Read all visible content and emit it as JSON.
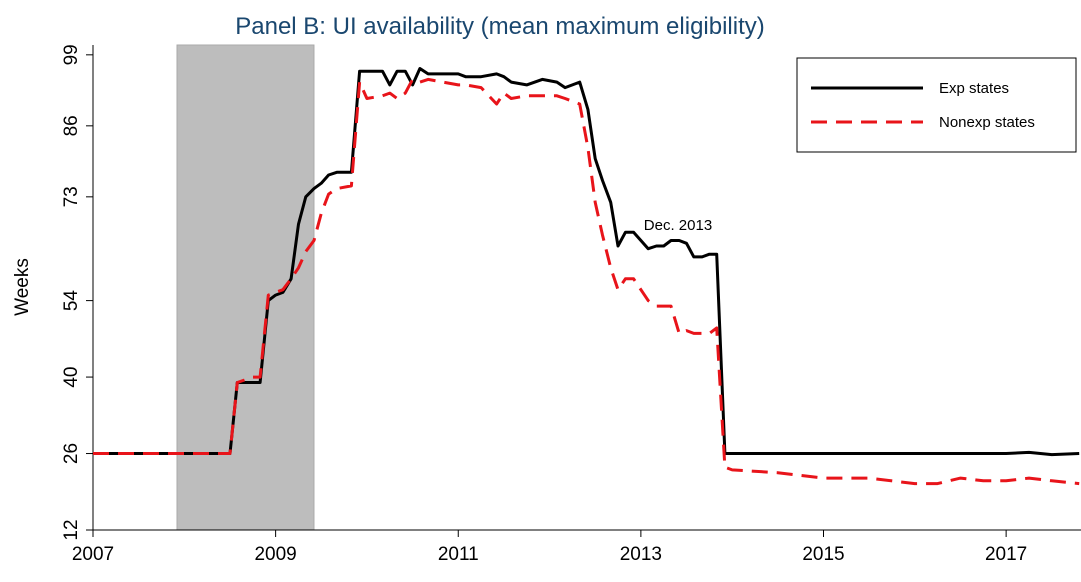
{
  "chart_data": {
    "type": "line",
    "title": "Panel B: UI availability (mean maximum eligibility)",
    "ylabel": "Weeks",
    "annotation": "Dec. 2013",
    "shaded_x": [
      2007.92,
      2009.42
    ],
    "x": [
      2007,
      2008.5,
      2008.58,
      2008.75,
      2008.83,
      2008.92,
      2009.0,
      2009.08,
      2009.17,
      2009.25,
      2009.33,
      2009.42,
      2009.5,
      2009.58,
      2009.67,
      2009.83,
      2009.92,
      2010.0,
      2010.17,
      2010.25,
      2010.33,
      2010.42,
      2010.5,
      2010.58,
      2010.67,
      2010.83,
      2011.0,
      2011.08,
      2011.25,
      2011.42,
      2011.5,
      2011.58,
      2011.75,
      2011.92,
      2012.08,
      2012.17,
      2012.33,
      2012.42,
      2012.5,
      2012.58,
      2012.67,
      2012.75,
      2012.83,
      2012.92,
      2013.0,
      2013.08,
      2013.17,
      2013.25,
      2013.33,
      2013.42,
      2013.5,
      2013.58,
      2013.67,
      2013.75,
      2013.83,
      2013.92,
      2014.0,
      2014.5,
      2015.0,
      2015.5,
      2016.0,
      2016.25,
      2016.5,
      2016.75,
      2017.0,
      2017.25,
      2017.5,
      2017.8
    ],
    "series": [
      {
        "name": "Exp states",
        "color": "#000000",
        "dash": false,
        "values": [
          26,
          26,
          39,
          39,
          39,
          54,
          55,
          55.5,
          58,
          68,
          73,
          74.5,
          75.5,
          77,
          77.5,
          77.5,
          96,
          96,
          96,
          93.5,
          96,
          96,
          93.5,
          96.5,
          95.5,
          95.5,
          95.5,
          95,
          95,
          95.5,
          95,
          94,
          93.5,
          94.5,
          94,
          93,
          94,
          89,
          80,
          76,
          72,
          64,
          66.5,
          66.5,
          65,
          63.5,
          64,
          64,
          65,
          65,
          64.5,
          62,
          62,
          62.5,
          62.5,
          26,
          26,
          26,
          26,
          26,
          26,
          26,
          26,
          26,
          26,
          26.2,
          25.8,
          26
        ]
      },
      {
        "name": "Nonexp states",
        "color": "#e8141a",
        "dash": true,
        "values": [
          26,
          26,
          39,
          40,
          40,
          55,
          55.5,
          56,
          58,
          60,
          63,
          65,
          70,
          73.5,
          74.5,
          75,
          94,
          91,
          91.5,
          92,
          91,
          92,
          94.5,
          94,
          94.5,
          94,
          93.5,
          93.5,
          93,
          90,
          92,
          91,
          91.5,
          91.5,
          91.5,
          91,
          90,
          82,
          72,
          66,
          60,
          56,
          58,
          58,
          56,
          54,
          53,
          53,
          53,
          48,
          48.5,
          48,
          48,
          48,
          49,
          23.5,
          23,
          22.5,
          21.5,
          21.5,
          20.5,
          20.5,
          21.5,
          21,
          21,
          21.5,
          21,
          20.5
        ]
      }
    ],
    "xlim": [
      2007,
      2017.82
    ],
    "xticks": [
      2007,
      2009,
      2011,
      2013,
      2015,
      2017
    ],
    "ylim": [
      12,
      100.8
    ],
    "yticks": [
      12,
      26,
      40,
      54,
      73,
      86,
      99
    ],
    "legend": "top-right"
  }
}
